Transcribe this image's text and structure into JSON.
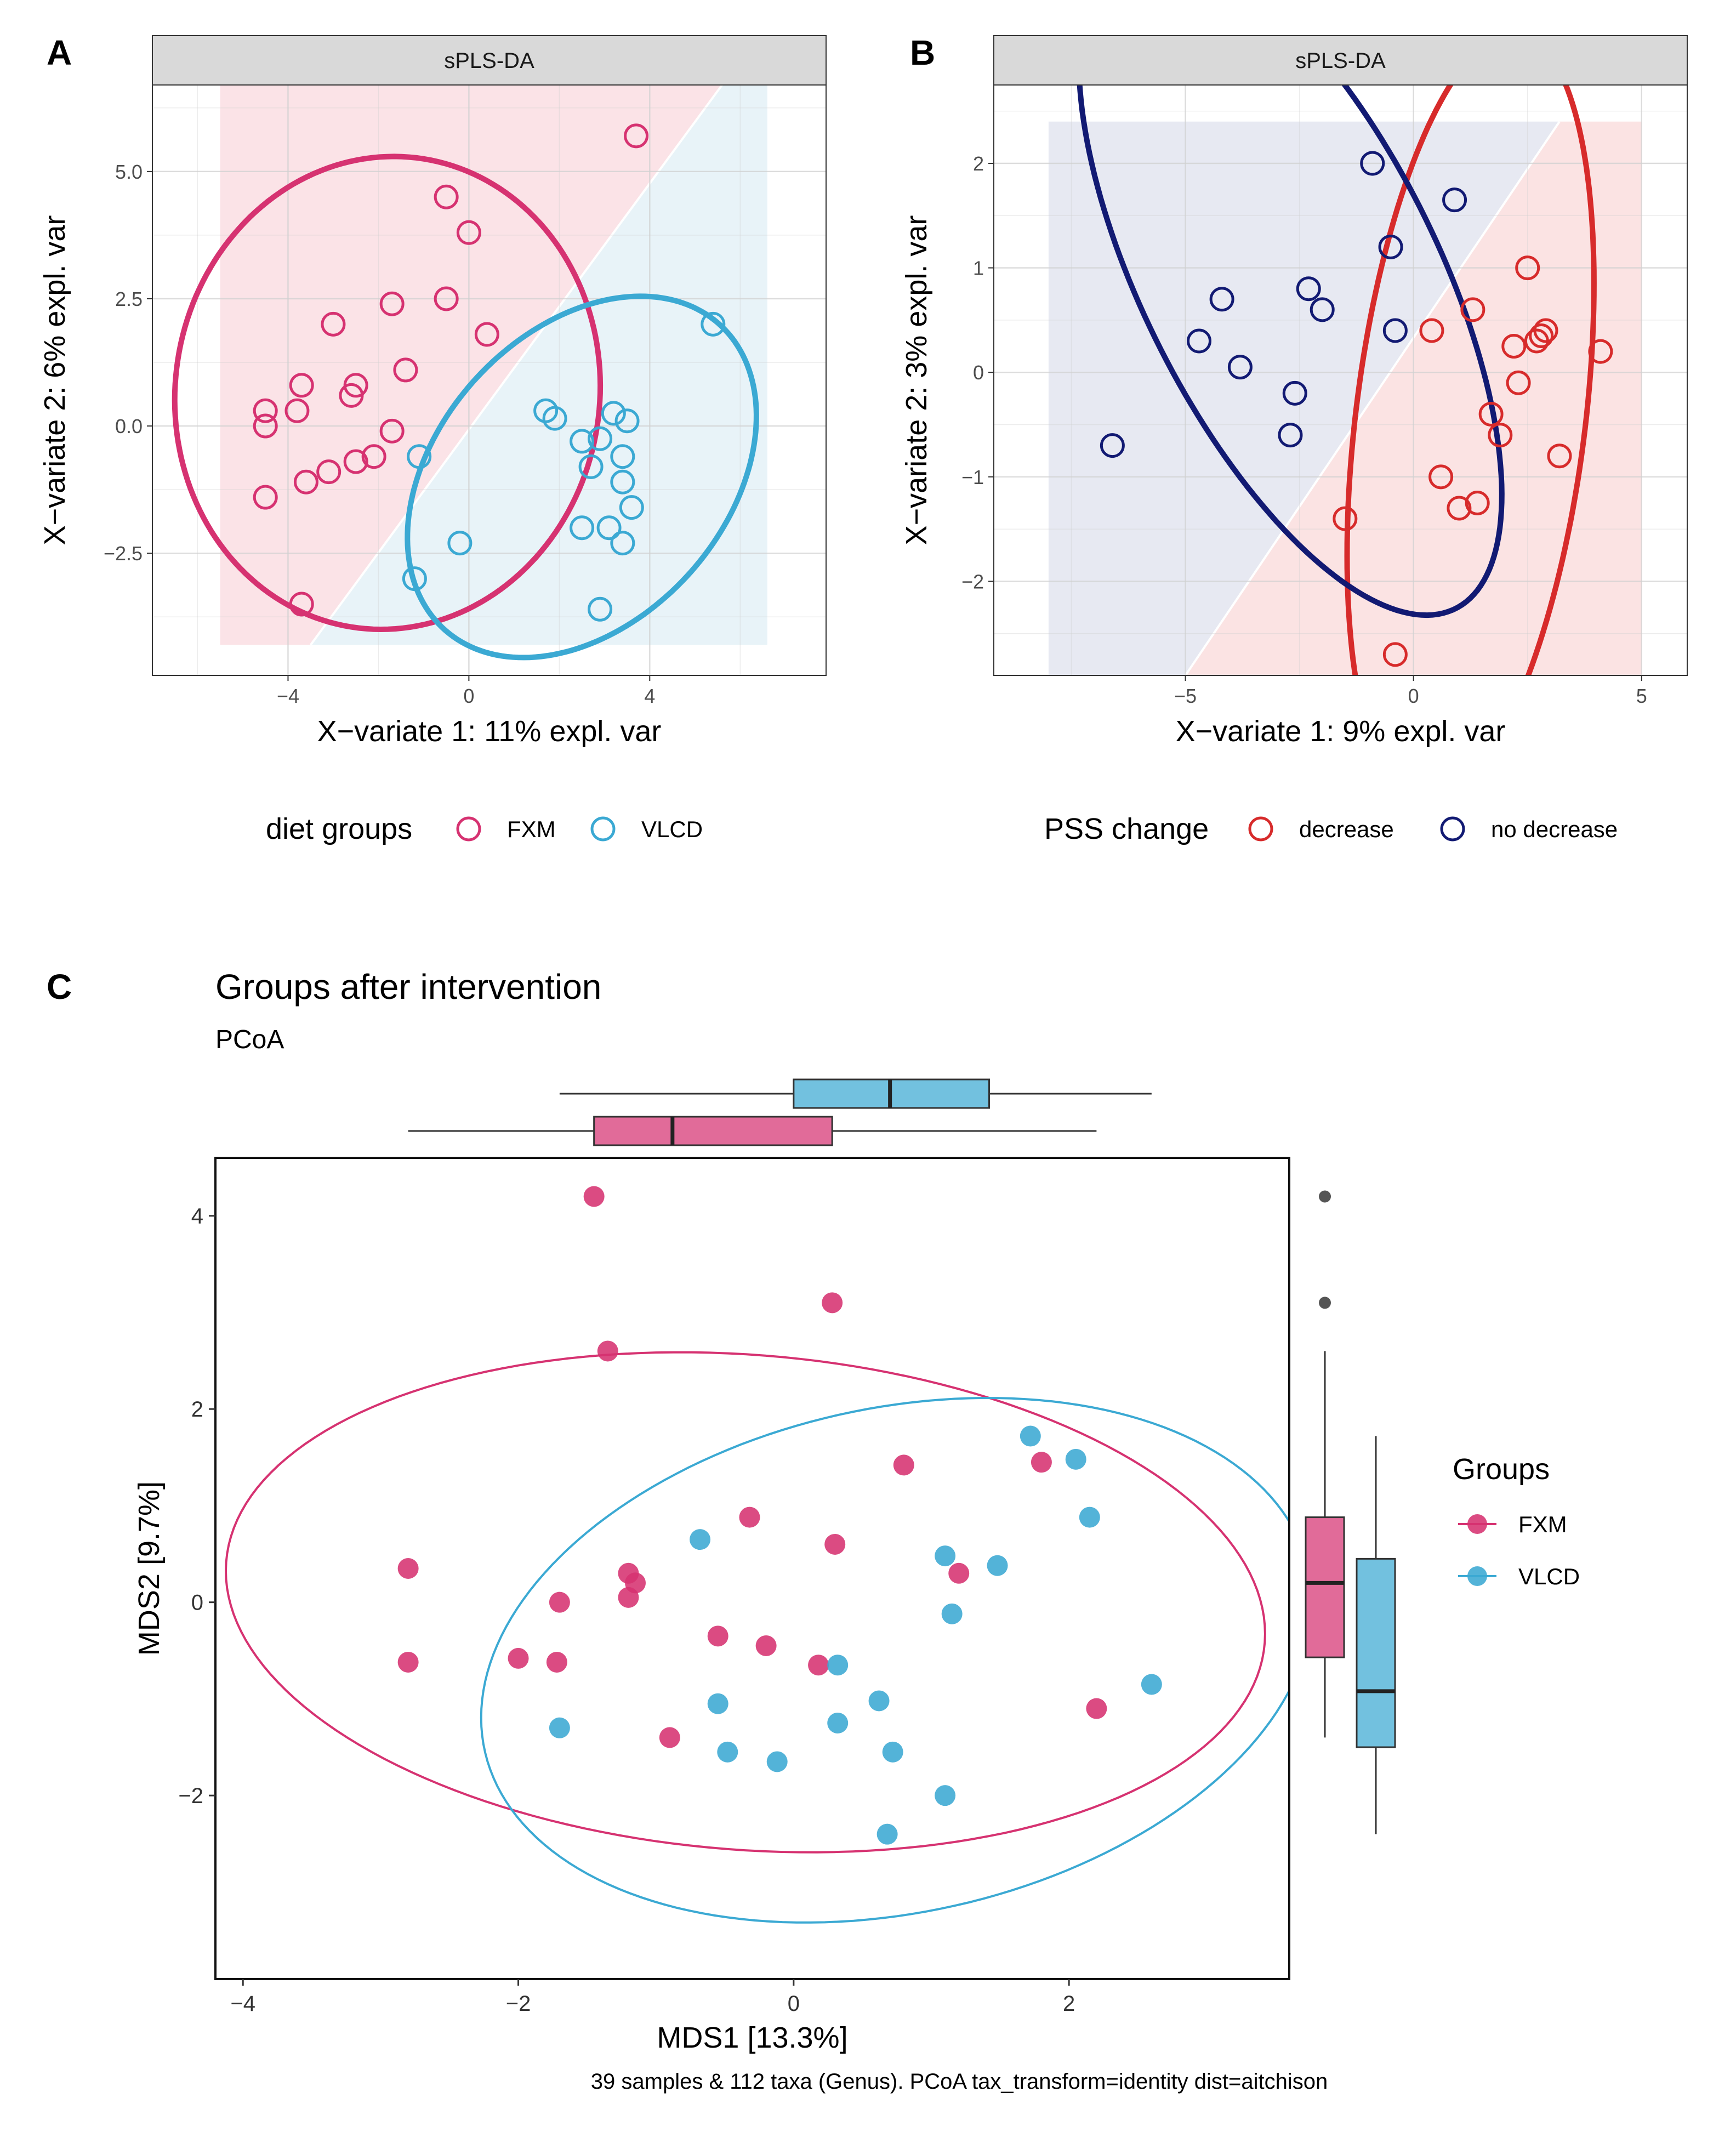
{
  "chart_data": [
    {
      "panel": "A",
      "type": "scatter",
      "strip_title": "sPLS-DA",
      "xlabel": "X−variate 1: 11% expl. var",
      "ylabel": "X−variate 2: 6% expl. var",
      "xlim": [
        -7.0,
        7.9
      ],
      "ylim": [
        -4.9,
        6.7
      ],
      "xticks": [
        -4,
        0,
        4
      ],
      "xtick_labels": [
        "−4",
        "0",
        "4"
      ],
      "yticks": [
        -2.5,
        0,
        2.5,
        5
      ],
      "ytick_labels": [
        "−2.5",
        "0.0",
        "2.5",
        "5.0"
      ],
      "legend_title": "diet groups",
      "legend_position": "bottom",
      "series": [
        {
          "name": "FXM",
          "color": "#d63271",
          "shade": "#fbe3e7",
          "points": [
            [
              3.7,
              5.7
            ],
            [
              -0.5,
              4.5
            ],
            [
              0.0,
              3.8
            ],
            [
              -1.7,
              2.4
            ],
            [
              -0.5,
              2.5
            ],
            [
              -3.0,
              2.0
            ],
            [
              0.4,
              1.8
            ],
            [
              -1.4,
              1.1
            ],
            [
              -3.7,
              0.8
            ],
            [
              -2.5,
              0.8
            ],
            [
              -2.6,
              0.6
            ],
            [
              -4.5,
              0.3
            ],
            [
              -3.8,
              0.3
            ],
            [
              -4.5,
              0.0
            ],
            [
              -1.7,
              -0.1
            ],
            [
              -2.5,
              -0.7
            ],
            [
              -2.1,
              -0.6
            ],
            [
              -3.1,
              -0.9
            ],
            [
              -3.6,
              -1.1
            ],
            [
              -4.5,
              -1.4
            ],
            [
              -3.7,
              -3.5
            ]
          ],
          "ellipse": {
            "center": [
              -1.8,
              0.65
            ],
            "radii": [
              4.6,
              4.75
            ],
            "rotation_deg": -57
          }
        },
        {
          "name": "VLCD",
          "color": "#3ba9d3",
          "shade": "#e8f3f8",
          "points": [
            [
              5.4,
              2.0
            ],
            [
              1.7,
              0.3
            ],
            [
              1.9,
              0.15
            ],
            [
              3.2,
              0.25
            ],
            [
              3.5,
              0.1
            ],
            [
              -1.1,
              -0.6
            ],
            [
              2.5,
              -0.3
            ],
            [
              2.9,
              -0.25
            ],
            [
              3.4,
              -0.6
            ],
            [
              2.7,
              -0.8
            ],
            [
              3.4,
              -1.1
            ],
            [
              3.6,
              -1.6
            ],
            [
              2.5,
              -2.0
            ],
            [
              3.1,
              -2.0
            ],
            [
              3.4,
              -2.3
            ],
            [
              -0.2,
              -2.3
            ],
            [
              -1.2,
              -3.0
            ],
            [
              2.9,
              -3.6
            ]
          ],
          "ellipse": {
            "center": [
              2.5,
              -1.0
            ],
            "radii": [
              4.3,
              3.0
            ],
            "rotation_deg": 38
          }
        }
      ]
    },
    {
      "panel": "B",
      "type": "scatter",
      "strip_title": "sPLS-DA",
      "xlabel": "X−variate 1: 9% expl. var",
      "ylabel": "X−variate 2: 3% expl. var",
      "xlim": [
        -9.2,
        6.0
      ],
      "ylim": [
        -2.9,
        2.75
      ],
      "xticks": [
        -5,
        0,
        5
      ],
      "xtick_labels": [
        "−5",
        "0",
        "5"
      ],
      "yticks": [
        -2,
        -1,
        0,
        1,
        2
      ],
      "ytick_labels": [
        "−2",
        "−1",
        "0",
        "1",
        "2"
      ],
      "legend_title": "PSS change",
      "legend_position": "bottom",
      "series": [
        {
          "name": "decrease",
          "color": "#d72b2b",
          "shade": "#fbe3e3",
          "points": [
            [
              2.5,
              1.0
            ],
            [
              0.4,
              0.4
            ],
            [
              1.3,
              0.6
            ],
            [
              2.2,
              0.25
            ],
            [
              2.7,
              0.3
            ],
            [
              2.8,
              0.35
            ],
            [
              2.9,
              0.4
            ],
            [
              4.1,
              0.2
            ],
            [
              2.3,
              -0.1
            ],
            [
              1.7,
              -0.4
            ],
            [
              1.9,
              -0.6
            ],
            [
              3.2,
              -0.8
            ],
            [
              0.6,
              -1.0
            ],
            [
              1.0,
              -1.3
            ],
            [
              1.4,
              -1.25
            ],
            [
              -1.5,
              -1.4
            ],
            [
              -0.4,
              -2.7
            ]
          ],
          "ellipse": {
            "center": [
              1.25,
              -0.45
            ],
            "radii": [
              3.9,
              2.4
            ],
            "rotation_deg": 66
          }
        },
        {
          "name": "no decrease",
          "color": "#121a73",
          "shade": "#e7e9f2",
          "points": [
            [
              -0.9,
              2.0
            ],
            [
              0.9,
              1.65
            ],
            [
              -0.5,
              1.2
            ],
            [
              -2.3,
              0.8
            ],
            [
              -4.2,
              0.7
            ],
            [
              -2.0,
              0.6
            ],
            [
              -0.4,
              0.4
            ],
            [
              -4.7,
              0.3
            ],
            [
              -3.8,
              0.05
            ],
            [
              -2.6,
              -0.2
            ],
            [
              -2.7,
              -0.6
            ],
            [
              -6.6,
              -0.7
            ]
          ],
          "ellipse": {
            "center": [
              -2.7,
              0.9
            ],
            "radii": [
              5.2,
              2.2
            ],
            "rotation_deg": -30
          }
        }
      ]
    },
    {
      "panel": "C",
      "type": "scatter",
      "title": "Groups after intervention",
      "subtitle": "PCoA",
      "xlabel": "MDS1 [13.3%]",
      "ylabel": "MDS2 [9.7%]",
      "caption": "39 samples & 112 taxa (Genus). PCoA tax_transform=identity dist=aitchison",
      "xlim": [
        -4.2,
        3.6
      ],
      "ylim": [
        -3.9,
        4.6
      ],
      "xticks": [
        -4,
        -2,
        0,
        2
      ],
      "xtick_labels": [
        "−4",
        "−2",
        "0",
        "2"
      ],
      "yticks": [
        -2,
        0,
        2,
        4
      ],
      "ytick_labels": [
        "−2",
        "0",
        "2",
        "4"
      ],
      "legend_title": "Groups",
      "legend_position": "right",
      "series": [
        {
          "name": "FXM",
          "color": "#d63271",
          "points": [
            [
              -1.45,
              4.2
            ],
            [
              0.28,
              3.1
            ],
            [
              -1.35,
              2.6
            ],
            [
              0.8,
              1.42
            ],
            [
              1.8,
              1.45
            ],
            [
              -0.32,
              0.88
            ],
            [
              0.3,
              0.6
            ],
            [
              1.2,
              0.3
            ],
            [
              -2.8,
              0.35
            ],
            [
              -1.2,
              0.3
            ],
            [
              -1.15,
              0.2
            ],
            [
              -1.7,
              0.0
            ],
            [
              -1.2,
              0.05
            ],
            [
              -0.55,
              -0.35
            ],
            [
              -0.2,
              -0.45
            ],
            [
              0.18,
              -0.65
            ],
            [
              -2.8,
              -0.62
            ],
            [
              -2.0,
              -0.58
            ],
            [
              -1.72,
              -0.62
            ],
            [
              -0.9,
              -1.4
            ],
            [
              2.2,
              -1.1
            ]
          ],
          "ellipse": {
            "center": [
              -0.35,
              0.0
            ],
            "radii": [
              3.8,
              2.55
            ],
            "rotation_deg": -9
          },
          "box_x": {
            "min": -2.8,
            "q1": -1.45,
            "median": -0.88,
            "q3": 0.28,
            "max": 2.2
          },
          "box_y": {
            "min": -1.4,
            "q1": -0.57,
            "median": 0.2,
            "q3": 0.88,
            "max": 2.6,
            "outliers": [
              3.1,
              4.2
            ]
          }
        },
        {
          "name": "VLCD",
          "color": "#3ba9d3",
          "points": [
            [
              1.72,
              1.72
            ],
            [
              2.05,
              1.48
            ],
            [
              2.15,
              0.88
            ],
            [
              -0.68,
              0.65
            ],
            [
              1.1,
              0.48
            ],
            [
              1.48,
              0.38
            ],
            [
              1.15,
              -0.12
            ],
            [
              0.32,
              -0.65
            ],
            [
              2.6,
              -0.85
            ],
            [
              0.62,
              -1.02
            ],
            [
              -0.55,
              -1.05
            ],
            [
              0.32,
              -1.25
            ],
            [
              -1.7,
              -1.3
            ],
            [
              0.72,
              -1.55
            ],
            [
              -0.48,
              -1.55
            ],
            [
              -0.12,
              -1.65
            ],
            [
              1.1,
              -2.0
            ],
            [
              0.68,
              -2.4
            ]
          ],
          "ellipse": {
            "center": [
              0.75,
              -0.6
            ],
            "radii": [
              3.2,
              2.5
            ],
            "rotation_deg": 32
          },
          "box_x": {
            "min": -1.7,
            "q1": 0.0,
            "median": 0.7,
            "q3": 1.42,
            "max": 2.6
          },
          "box_y": {
            "min": -2.4,
            "q1": -1.5,
            "median": -0.92,
            "q3": 0.45,
            "max": 1.72
          }
        }
      ]
    }
  ]
}
